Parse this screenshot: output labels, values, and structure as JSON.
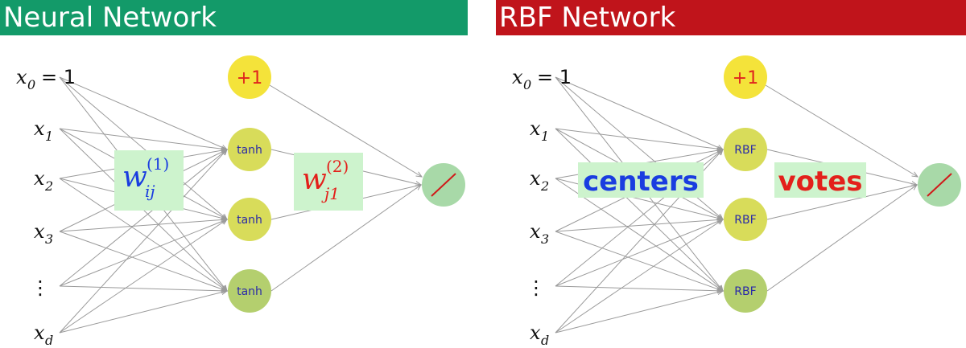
{
  "panels": [
    {
      "title": "Neural Network",
      "title_color": "#139a69",
      "inputs": [
        {
          "base": "x",
          "sub": "0",
          "suffix": "= 1"
        },
        {
          "base": "x",
          "sub": "1",
          "suffix": ""
        },
        {
          "base": "x",
          "sub": "2",
          "suffix": ""
        },
        {
          "base": "x",
          "sub": "3",
          "suffix": ""
        },
        {
          "base": "⋮",
          "sub": "",
          "suffix": ""
        },
        {
          "base": "x",
          "sub": "d",
          "suffix": ""
        }
      ],
      "bias_label": "+1",
      "hidden_nodes": [
        "tanh",
        "tanh",
        "tanh"
      ],
      "weight_label_1": {
        "base": "w",
        "sub": "ij",
        "sup": "(1)",
        "color": "#1a3de0"
      },
      "weight_label_2": {
        "base": "w",
        "sub": "j1",
        "sup": "(2)",
        "color": "#e3201b"
      }
    },
    {
      "title": "RBF Network",
      "title_color": "#c0141b",
      "inputs": [
        {
          "base": "x",
          "sub": "0",
          "suffix": "= 1"
        },
        {
          "base": "x",
          "sub": "1",
          "suffix": ""
        },
        {
          "base": "x",
          "sub": "2",
          "suffix": ""
        },
        {
          "base": "x",
          "sub": "3",
          "suffix": ""
        },
        {
          "base": "⋮",
          "sub": "",
          "suffix": ""
        },
        {
          "base": "x",
          "sub": "d",
          "suffix": ""
        }
      ],
      "bias_label": "+1",
      "hidden_nodes": [
        "RBF",
        "RBF",
        "RBF"
      ],
      "label_1": {
        "text": "centers",
        "color": "#1a3de0"
      },
      "label_2": {
        "text": "votes",
        "color": "#e3201b"
      }
    }
  ],
  "colors": {
    "bias_node": "#f4e33a",
    "hidden_node": "#d8dc5a",
    "hidden_node_bottom": "#b4cf6e",
    "output_node": "#a8d9a8",
    "output_line": "#d01a1a",
    "label_box": "#cdf3cd",
    "edge": "#9a9a9a"
  }
}
